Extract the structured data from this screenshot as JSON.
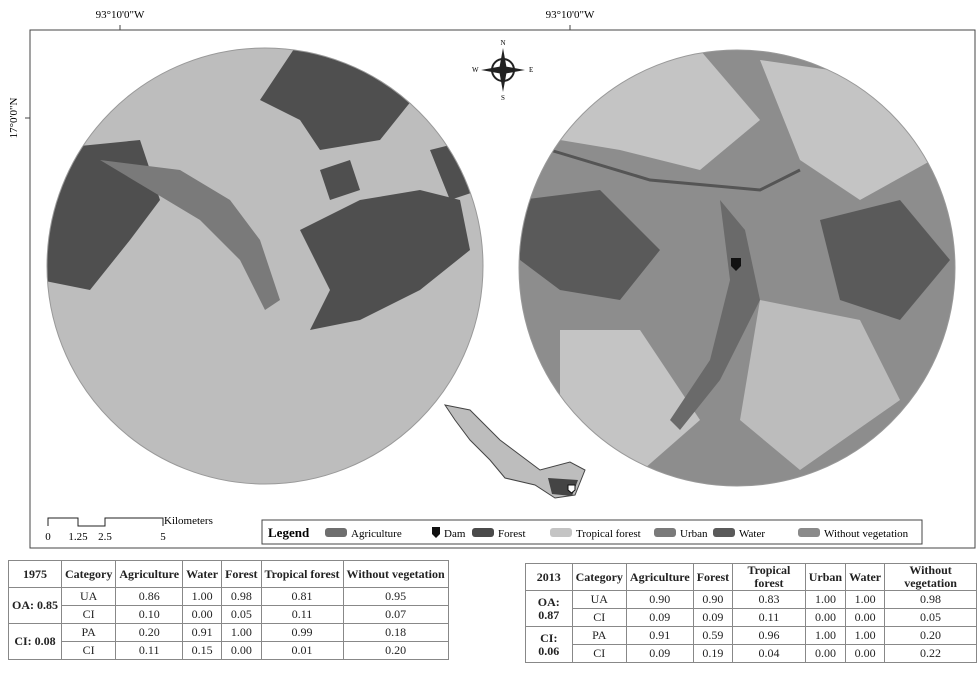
{
  "coordinates": {
    "top_left": "93°10'0\"W",
    "top_right": "93°10'0\"W",
    "left": "17°0'0\"N"
  },
  "compass": {
    "n": "N",
    "s": "S",
    "e": "E",
    "w": "W"
  },
  "scale_bar": {
    "unit": "Kilometers",
    "ticks": [
      "0",
      "1.25",
      "2.5",
      "5"
    ]
  },
  "legend": {
    "title": "Legend",
    "items": [
      "Agriculture",
      "Dam",
      "Forest",
      "Tropical forest",
      "Urban",
      "Water",
      "Without vegetation"
    ]
  },
  "table_1975": {
    "header": [
      "1975",
      "Category",
      "Agriculture",
      "Water",
      "Forest",
      "Tropical forest",
      "Without vegetation"
    ],
    "groups": [
      {
        "label": "OA: 0.85",
        "rows": [
          [
            "UA",
            "0.86",
            "1.00",
            "0.98",
            "0.81",
            "0.95"
          ],
          [
            "CI",
            "0.10",
            "0.00",
            "0.05",
            "0.11",
            "0.07"
          ]
        ]
      },
      {
        "label": "CI: 0.08",
        "rows": [
          [
            "PA",
            "0.20",
            "0.91",
            "1.00",
            "0.99",
            "0.18"
          ],
          [
            "CI",
            "0.11",
            "0.15",
            "0.00",
            "0.01",
            "0.20"
          ]
        ]
      }
    ]
  },
  "table_2013": {
    "header": [
      "2013",
      "Category",
      "Agriculture",
      "Forest",
      "Tropical forest",
      "Urban",
      "Water",
      "Without vegetation"
    ],
    "groups": [
      {
        "label": "OA: 0.87",
        "rows": [
          [
            "UA",
            "0.90",
            "0.90",
            "0.83",
            "1.00",
            "1.00",
            "0.98"
          ],
          [
            "CI",
            "0.09",
            "0.09",
            "0.11",
            "0.00",
            "0.00",
            "0.05"
          ]
        ]
      },
      {
        "label": "CI: 0.06",
        "rows": [
          [
            "PA",
            "0.91",
            "0.59",
            "0.96",
            "1.00",
            "1.00",
            "0.20"
          ],
          [
            "CI",
            "0.09",
            "0.19",
            "0.04",
            "0.00",
            "0.00",
            "0.22"
          ]
        ]
      }
    ]
  }
}
